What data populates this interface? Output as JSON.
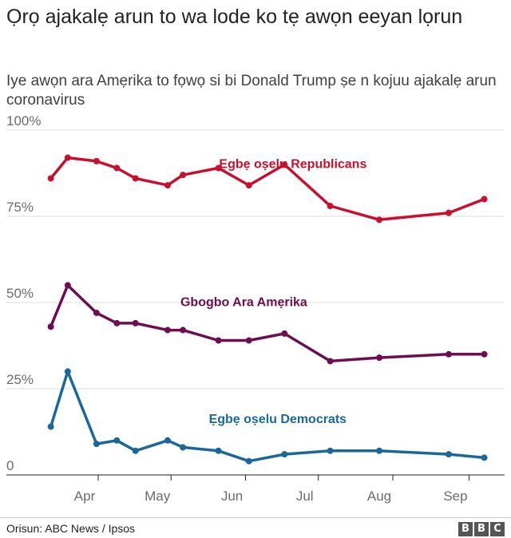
{
  "header": {
    "title": "Ọrọ ajakalẹ arun to wa lode ko tẹ awọn eeyan lọrun",
    "subtitle": "Iye awọn ara Amẹrika to fọwọ si bi Donald Trump ṣe n kojuu ajakalẹ arun coronavirus"
  },
  "footer": {
    "source": "Orisun: ABC News / Ipsos",
    "logo_letters": [
      "B",
      "B",
      "C"
    ]
  },
  "chart_data": {
    "type": "line",
    "title": "Ọrọ ajakalẹ arun to wa lode ko tẹ awọn eeyan lọrun",
    "subtitle": "Iye awọn ara Amẹrika to fọwọ si bi Donald Trump ṣe n kojuu ajakalẹ arun coronavirus",
    "xlabel": "",
    "ylabel": "",
    "ylim": [
      0,
      100
    ],
    "yticks": [
      0,
      25,
      50,
      75,
      100
    ],
    "ytick_labels": [
      "0",
      "25%",
      "50%",
      "75%",
      "100%"
    ],
    "xlim": [
      -2.5,
      24
    ],
    "xticks": [
      {
        "label": "Apr",
        "week": 0
      },
      {
        "label": "May",
        "week": 4.3
      },
      {
        "label": "Jun",
        "week": 8.7
      },
      {
        "label": "Jul",
        "week": 13
      },
      {
        "label": "Aug",
        "week": 17.4
      },
      {
        "label": "Sep",
        "week": 21.9
      }
    ],
    "x_weeks": [
      -2.8,
      -1.8,
      -0.1,
      1.1,
      2.2,
      4.1,
      5.0,
      7.1,
      8.9,
      11.0,
      13.7,
      16.6,
      20.7,
      22.8
    ],
    "series": [
      {
        "name": "Ẹgbẹ oṣelu Republicans",
        "color": "#c8102e",
        "label_week": 11.5,
        "label_value": 89,
        "x_weeks": [
          -2.8,
          -1.8,
          -0.1,
          1.1,
          2.2,
          4.1,
          5.0,
          7.1,
          8.9,
          11.0,
          13.7,
          16.6,
          20.7,
          22.8
        ],
        "values": [
          86,
          92,
          91,
          89,
          86,
          84,
          87,
          89,
          84,
          90,
          78,
          74,
          76,
          80
        ]
      },
      {
        "name": "Gbogbo Ara Amẹrika",
        "color": "#6e0e52",
        "label_week": 8.6,
        "label_value": 49,
        "x_weeks": [
          -2.8,
          -1.8,
          -0.1,
          1.1,
          2.2,
          4.1,
          5.0,
          7.1,
          8.9,
          11.0,
          13.7,
          16.6,
          20.7,
          22.8
        ],
        "values": [
          43,
          55,
          47,
          44,
          44,
          42,
          42,
          39,
          39,
          41,
          33,
          34,
          35,
          35
        ]
      },
      {
        "name": "Ẹgbẹ oṣelu Democrats",
        "color": "#1a6899",
        "label_week": 10.6,
        "label_value": 15,
        "x_weeks": [
          -2.8,
          -1.8,
          -0.1,
          1.1,
          2.2,
          4.1,
          5.0,
          7.1,
          8.9,
          11.0,
          13.7,
          16.6,
          20.7,
          22.8
        ],
        "values": [
          14,
          30,
          9,
          10,
          7,
          10,
          8,
          7,
          4,
          6,
          7,
          7,
          6,
          5
        ]
      }
    ]
  }
}
